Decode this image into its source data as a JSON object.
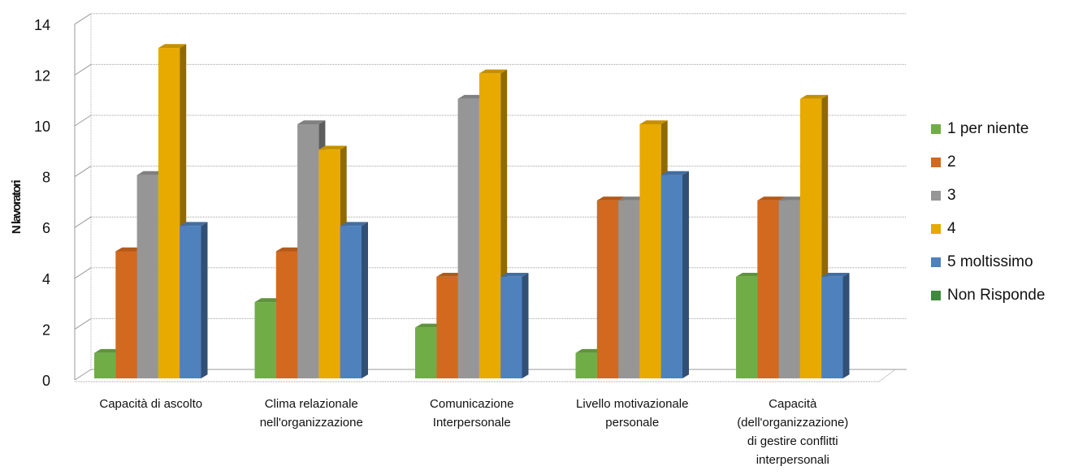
{
  "chart_data": {
    "type": "bar",
    "title": "",
    "xlabel": "",
    "ylabel": "N lavoratori",
    "ylim": [
      0,
      14
    ],
    "yticks": [
      "0",
      "2",
      "4",
      "6",
      "8",
      "10",
      "12",
      "14"
    ],
    "grid": true,
    "legend_position": "right",
    "categories": [
      "Capacità di ascolto",
      "Clima relazionale\nnell'organizzazione",
      "Comunicazione\nInterpersonale",
      "Livello motivazionale\npersonale",
      "Capacità\n(dell'organizzazione)\ndi gestire conflitti\ninterpersonali"
    ],
    "series": [
      {
        "name": "1 per niente",
        "color": "#70ad47",
        "values": [
          1,
          3,
          2,
          1,
          4
        ]
      },
      {
        "name": "2",
        "color": "#d2691e",
        "values": [
          5,
          5,
          4,
          7,
          7
        ]
      },
      {
        "name": "3",
        "color": "#969696",
        "values": [
          8,
          10,
          11,
          7,
          7
        ]
      },
      {
        "name": "4",
        "color": "#e8a900",
        "values": [
          13,
          9,
          12,
          10,
          11
        ]
      },
      {
        "name": "5 moltissimo",
        "color": "#4f81bd",
        "values": [
          6,
          6,
          4,
          8,
          4
        ]
      },
      {
        "name": "Non Risponde",
        "color": "#3e8a3e",
        "values": [
          0,
          0,
          0,
          0,
          0
        ]
      }
    ]
  }
}
